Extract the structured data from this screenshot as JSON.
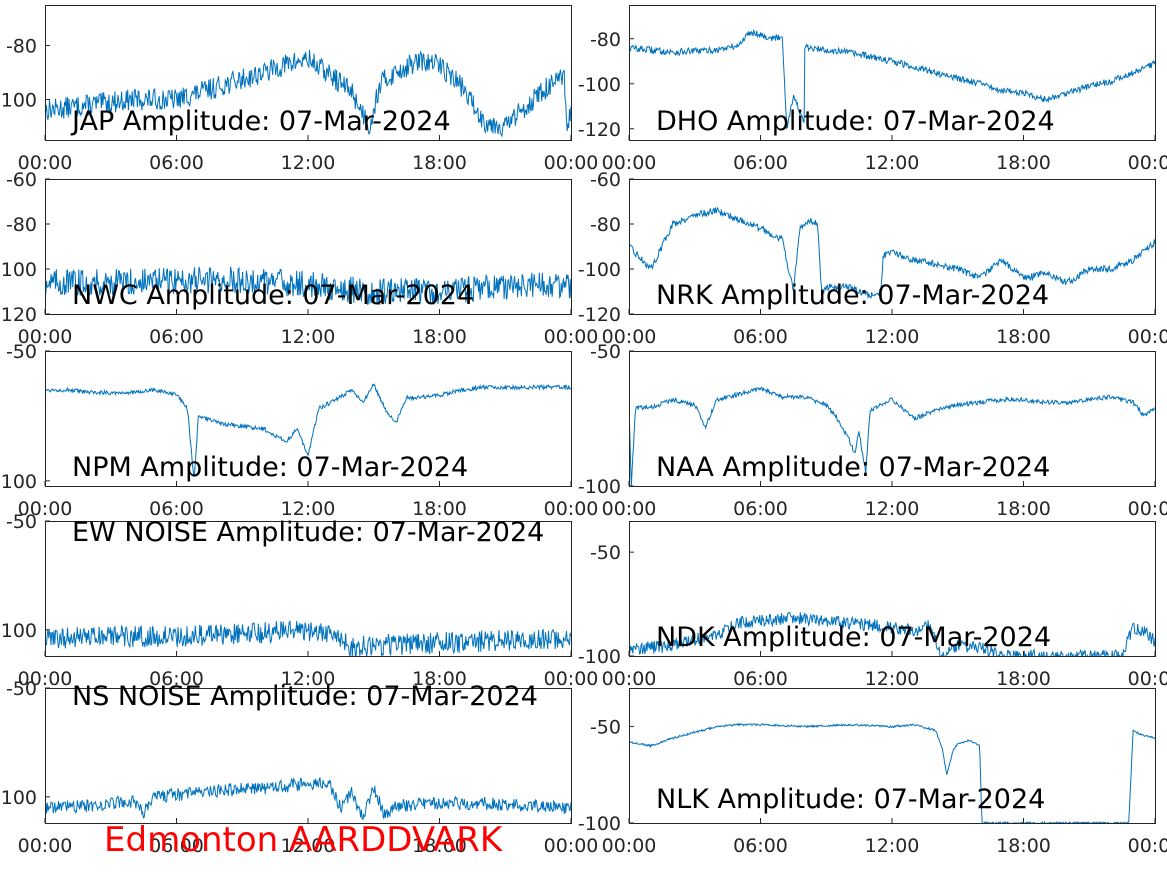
{
  "footer": {
    "text": "Edmonton AARDDVARK",
    "color": "#ff0000"
  },
  "style": {
    "line_color": "#0072bd",
    "axis_color": "#262626",
    "grid": false
  },
  "chart_data": [
    {
      "type": "line",
      "title": "JAP Amplitude: 07-Mar-2024",
      "xlabel": "",
      "ylabel": "",
      "xlim": [
        "00:00",
        "24:00"
      ],
      "ylim": [
        -115,
        -65
      ],
      "xticks": [
        "00:00",
        "06:00",
        "12:00",
        "18:00",
        "00:00"
      ],
      "yticks": [
        "-80",
        "-100"
      ],
      "noise": 4,
      "series": [
        {
          "x": [
            0,
            2,
            4,
            6,
            8,
            10,
            11,
            12,
            13,
            14,
            14.8,
            15.3,
            16,
            17,
            18,
            19,
            20,
            21,
            22,
            23,
            23.7,
            23.8,
            24
          ],
          "y": [
            -104,
            -102,
            -100,
            -100,
            -95,
            -90,
            -87,
            -85,
            -91,
            -97,
            -110,
            -94,
            -90,
            -86,
            -87,
            -95,
            -108,
            -110,
            -102,
            -95,
            -92,
            -112,
            -104
          ]
        }
      ]
    },
    {
      "type": "line",
      "title": "DHO Amplitude: 07-Mar-2024",
      "xlabel": "",
      "ylabel": "",
      "xlim": [
        "00:00",
        "24:00"
      ],
      "ylim": [
        -125,
        -65
      ],
      "xticks": [
        "00:00",
        "06:00",
        "12:00",
        "18:00",
        "00:00"
      ],
      "yticks": [
        "-80",
        "-100",
        "-120"
      ],
      "noise": 1.5,
      "series": [
        {
          "x": [
            0,
            2,
            4,
            5,
            5.5,
            6,
            6.5,
            7,
            7.2,
            7.5,
            8,
            8,
            10,
            12,
            14,
            16,
            17,
            18,
            19,
            20,
            21,
            22,
            23,
            24
          ],
          "y": [
            -84,
            -86,
            -85,
            -83,
            -77,
            -78,
            -80,
            -79,
            -120,
            -105,
            -118,
            -84,
            -86,
            -90,
            -95,
            -100,
            -103,
            -104,
            -107,
            -104,
            -101,
            -99,
            -95,
            -91
          ]
        }
      ]
    },
    {
      "type": "line",
      "title": "NWC Amplitude: 07-Mar-2024",
      "xlabel": "",
      "ylabel": "",
      "xlim": [
        "00:00",
        "24:00"
      ],
      "ylim": [
        -120,
        -60
      ],
      "xticks": [
        "00:00",
        "06:00",
        "12:00",
        "18:00",
        "00:00"
      ],
      "yticks": [
        "-60",
        "-80",
        "-100",
        "-120"
      ],
      "noise": 6,
      "series": [
        {
          "x": [
            0,
            3,
            6,
            9,
            12,
            15,
            18,
            21,
            24
          ],
          "y": [
            -106,
            -106,
            -105,
            -105,
            -107,
            -110,
            -110,
            -108,
            -107
          ]
        }
      ]
    },
    {
      "type": "line",
      "title": "NRK Amplitude: 07-Mar-2024",
      "xlabel": "",
      "ylabel": "",
      "xlim": [
        "00:00",
        "24:00"
      ],
      "ylim": [
        -120,
        -60
      ],
      "xticks": [
        "00:00",
        "06:00",
        "12:00",
        "18:00",
        "00:00"
      ],
      "yticks": [
        "-60",
        "-80",
        "-100",
        "-120"
      ],
      "noise": 1.5,
      "series": [
        {
          "x": [
            0,
            0.5,
            1,
            2,
            3,
            4,
            5,
            6,
            7,
            7.5,
            7.8,
            8.2,
            8.6,
            8.8,
            9,
            10,
            11,
            11.5,
            11.6,
            12,
            13,
            14,
            15,
            16,
            17,
            18,
            19,
            20,
            21,
            22,
            23,
            24
          ],
          "y": [
            -90,
            -95,
            -100,
            -80,
            -76,
            -74,
            -78,
            -82,
            -87,
            -110,
            -82,
            -78,
            -80,
            -112,
            -108,
            -108,
            -112,
            -110,
            -94,
            -93,
            -96,
            -98,
            -100,
            -104,
            -96,
            -104,
            -102,
            -106,
            -100,
            -100,
            -96,
            -88
          ]
        }
      ]
    },
    {
      "type": "line",
      "title": "NPM Amplitude: 07-Mar-2024",
      "xlabel": "",
      "ylabel": "",
      "xlim": [
        "00:00",
        "24:00"
      ],
      "ylim": [
        -102,
        -50
      ],
      "xticks": [
        "00:00",
        "06:00",
        "12:00",
        "18:00",
        "00:00"
      ],
      "yticks": [
        "-50",
        "-100"
      ],
      "noise": 0.8,
      "series": [
        {
          "x": [
            0,
            1,
            2,
            3,
            4,
            5,
            6,
            6.5,
            6.8,
            7,
            8,
            9,
            10,
            11,
            11.5,
            12,
            12.5,
            13,
            14,
            14.5,
            15,
            15.5,
            16,
            16.5,
            17,
            18,
            19,
            20,
            21,
            22,
            23,
            24
          ],
          "y": [
            -65,
            -65,
            -66,
            -66,
            -66,
            -65,
            -67,
            -72,
            -100,
            -75,
            -78,
            -79,
            -80,
            -85,
            -80,
            -90,
            -72,
            -70,
            -65,
            -70,
            -63,
            -72,
            -78,
            -68,
            -68,
            -67,
            -65,
            -64,
            -64,
            -64,
            -64,
            -64
          ]
        }
      ]
    },
    {
      "type": "line",
      "title": "NAA Amplitude: 07-Mar-2024",
      "xlabel": "",
      "ylabel": "",
      "xlim": [
        "00:00",
        "24:00"
      ],
      "ylim": [
        -100,
        -50
      ],
      "xticks": [
        "00:00",
        "06:00",
        "12:00",
        "18:00",
        "00:00"
      ],
      "yticks": [
        "-50",
        "-100"
      ],
      "noise": 0.8,
      "series": [
        {
          "x": [
            0,
            0.1,
            0.3,
            1,
            2,
            3,
            3.5,
            4,
            5,
            6,
            7,
            8,
            9,
            9.5,
            10,
            10.3,
            10.5,
            10.8,
            11,
            12,
            13,
            14,
            15,
            16,
            17,
            18,
            19,
            20,
            21,
            22,
            23,
            23.5,
            24
          ],
          "y": [
            -70,
            -100,
            -71,
            -71,
            -68,
            -70,
            -78,
            -68,
            -66,
            -64,
            -67,
            -67,
            -70,
            -75,
            -82,
            -88,
            -80,
            -95,
            -72,
            -68,
            -75,
            -72,
            -70,
            -69,
            -68,
            -68,
            -69,
            -69,
            -68,
            -67,
            -69,
            -74,
            -71
          ]
        }
      ]
    },
    {
      "type": "line",
      "title": "EW NOISE Amplitude: 07-Mar-2024",
      "xlabel": "",
      "ylabel": "",
      "xlim": [
        "00:00",
        "24:00"
      ],
      "ylim": [
        -112,
        -50
      ],
      "xticks": [
        "00:00",
        "06:00",
        "12:00",
        "18:00",
        "00:00"
      ],
      "yticks": [
        "-50",
        "-100"
      ],
      "noise": 5,
      "series": [
        {
          "x": [
            0,
            3,
            6,
            9,
            12,
            13.5,
            14,
            15,
            18,
            21,
            24
          ],
          "y": [
            -104,
            -103,
            -103,
            -102,
            -100,
            -103,
            -108,
            -107,
            -106,
            -105,
            -104
          ]
        }
      ]
    },
    {
      "type": "line",
      "title": "NDK Amplitude: 07-Mar-2024",
      "xlabel": "",
      "ylabel": "",
      "xlim": [
        "00:00",
        "24:00"
      ],
      "ylim": [
        -100,
        -35
      ],
      "xticks": [
        "00:00",
        "06:00",
        "12:00",
        "18:00",
        "00:00"
      ],
      "yticks": [
        "-50",
        "-100"
      ],
      "noise": 3,
      "series": [
        {
          "x": [
            0,
            1,
            2,
            3,
            4,
            5,
            6,
            7,
            8,
            9,
            10,
            11,
            12,
            13,
            13.8,
            14.2,
            15,
            16,
            17,
            18,
            20,
            21.5,
            22,
            22.5,
            23,
            23.5,
            24
          ],
          "y": [
            -96,
            -96,
            -95,
            -92,
            -90,
            -84,
            -83,
            -82,
            -82,
            -83,
            -84,
            -85,
            -86,
            -88,
            -85,
            -100,
            -95,
            -96,
            -100,
            -100,
            -100,
            -100,
            -100,
            -100,
            -86,
            -88,
            -93
          ]
        }
      ]
    },
    {
      "type": "line",
      "title": "NS NOISE Amplitude: 07-Mar-2024",
      "xlabel": "",
      "ylabel": "",
      "xlim": [
        "00:00",
        "24:00"
      ],
      "ylim": [
        -112,
        -50
      ],
      "xticks": [
        "00:00",
        "06:00",
        "12:00",
        "18:00",
        "00:00"
      ],
      "yticks": [
        "-50",
        "-100"
      ],
      "noise": 3,
      "series": [
        {
          "x": [
            0,
            2,
            4,
            4.5,
            5,
            6,
            8,
            10,
            12,
            13,
            13.5,
            14,
            14.5,
            15,
            15.5,
            16,
            18,
            20,
            22,
            24
          ],
          "y": [
            -105,
            -104,
            -102,
            -108,
            -100,
            -99,
            -97,
            -96,
            -94,
            -94,
            -105,
            -98,
            -110,
            -96,
            -108,
            -104,
            -103,
            -103,
            -104,
            -105
          ]
        }
      ]
    },
    {
      "type": "line",
      "title": "NLK Amplitude: 07-Mar-2024",
      "xlabel": "",
      "ylabel": "",
      "xlim": [
        "00:00",
        "24:00"
      ],
      "ylim": [
        -100,
        -30
      ],
      "xticks": [
        "00:00",
        "06:00",
        "12:00",
        "18:00",
        "00:00"
      ],
      "yticks": [
        "-50",
        "-100"
      ],
      "noise": 0.5,
      "series": [
        {
          "x": [
            0,
            1,
            2,
            3,
            4,
            5,
            6,
            8,
            10,
            12,
            13,
            14,
            14.3,
            14.5,
            14.8,
            15,
            15.5,
            16,
            16.1,
            16.2,
            18,
            20,
            22,
            22.8,
            23,
            23.3,
            24
          ],
          "y": [
            -58,
            -60,
            -56,
            -53,
            -50,
            -49,
            -49,
            -50,
            -49,
            -50,
            -49,
            -52,
            -62,
            -75,
            -62,
            -59,
            -57,
            -60,
            -100,
            -100,
            -100,
            -100,
            -100,
            -100,
            -52,
            -54,
            -56
          ]
        }
      ]
    }
  ]
}
